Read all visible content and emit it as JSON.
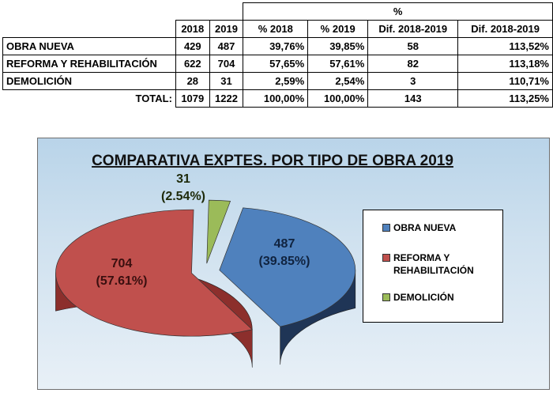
{
  "table": {
    "percent_header": "%",
    "headers": [
      "",
      "2018",
      "2019",
      "% 2018",
      "% 2019",
      "Dif. 2018-2019",
      "Dif. 2018-2019"
    ],
    "rows": [
      {
        "label": "OBRA NUEVA",
        "y2018": "429",
        "y2019": "487",
        "p2018": "39,76%",
        "p2019": "39,85%",
        "dif": "58",
        "dif_pct": "113,52%"
      },
      {
        "label": "REFORMA Y REHABILITACIÓN",
        "y2018": "622",
        "y2019": "704",
        "p2018": "57,65%",
        "p2019": "57,61%",
        "dif": "82",
        "dif_pct": "113,18%"
      },
      {
        "label": "DEMOLICIÓN",
        "y2018": "28",
        "y2019": "31",
        "p2018": "2,59%",
        "p2019": "2,54%",
        "dif": "3",
        "dif_pct": "110,71%"
      }
    ],
    "total": {
      "label": "TOTAL:",
      "y2018": "1079",
      "y2019": "1222",
      "p2018": "100,00%",
      "p2019": "100,00%",
      "dif": "143",
      "dif_pct": "113,25%"
    }
  },
  "chart_data": {
    "type": "pie",
    "title": "COMPARATIVA EXPTES. POR TIPO DE OBRA 2019",
    "legend_position": "right",
    "slices": [
      {
        "name": "OBRA NUEVA",
        "legend_lines": [
          "OBRA NUEVA"
        ],
        "value": 487,
        "label_lines": [
          "487",
          "(39.85%)"
        ],
        "color": "#4f81bd",
        "side_color": "#1f3556",
        "text_color": "#10233f"
      },
      {
        "name": "REFORMA Y REHABILITACIÓN",
        "legend_lines": [
          "REFORMA Y",
          "REHABILITACIÓN"
        ],
        "value": 704,
        "label_lines": [
          "704",
          "(57.61%)"
        ],
        "color": "#c0504d",
        "side_color": "#8c2f2c",
        "text_color": "#3a0f0f"
      },
      {
        "name": "DEMOLICIÓN",
        "legend_lines": [
          "DEMOLICIÓN"
        ],
        "value": 31,
        "label_lines": [
          "31",
          "(2.54%)"
        ],
        "color": "#9bbb59",
        "side_color": "#5f7a2a",
        "text_color": "#1e2a0a"
      }
    ]
  }
}
